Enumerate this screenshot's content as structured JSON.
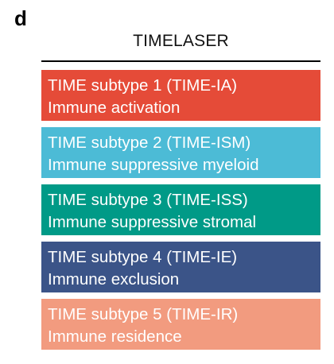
{
  "panel_label": "d",
  "heading": "TIMELASER",
  "subtypes": [
    {
      "line1": "TIME subtype 1 (TIME-IA)",
      "line2": "Immune activation",
      "color": "#e54b38"
    },
    {
      "line1": "TIME subtype 2 (TIME-ISM)",
      "line2": "Immune suppressive myeloid",
      "color": "#4cbbd6"
    },
    {
      "line1": "TIME subtype 3 (TIME-ISS)",
      "line2": "Immune suppressive stromal",
      "color": "#009a87"
    },
    {
      "line1": "TIME subtype 4 (TIME-IE)",
      "line2": "Immune exclusion",
      "color": "#3b5488"
    },
    {
      "line1": "TIME subtype 5 (TIME-IR)",
      "line2": "Immune residence",
      "color": "#f29b7f"
    }
  ]
}
